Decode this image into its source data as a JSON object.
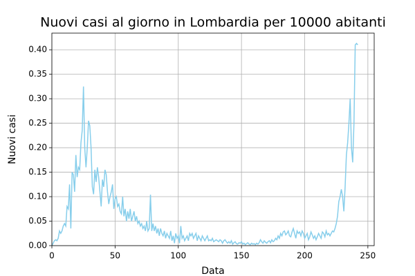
{
  "chart_data": {
    "type": "line",
    "title": "Nuovi casi al giorno in Lombardia per 10000 abitanti",
    "xlabel": "Data",
    "ylabel": "Nuovi casi",
    "xlim": [
      0,
      255
    ],
    "ylim": [
      0,
      0.434
    ],
    "xticks": [
      0,
      50,
      100,
      150,
      200,
      250
    ],
    "yticks": [
      {
        "value": 0,
        "label": "0.00"
      },
      {
        "value": 0.05,
        "label": "0.05"
      },
      {
        "value": 0.1,
        "label": "0.10"
      },
      {
        "value": 0.15,
        "label": "0.15"
      },
      {
        "value": 0.2,
        "label": "0.20"
      },
      {
        "value": 0.25,
        "label": "0.25"
      },
      {
        "value": 0.3,
        "label": "0.30"
      },
      {
        "value": 0.35,
        "label": "0.35"
      },
      {
        "value": 0.4,
        "label": "0.40"
      }
    ],
    "grid": true,
    "x": [
      0,
      1,
      2,
      3,
      4,
      5,
      6,
      7,
      8,
      9,
      10,
      11,
      12,
      13,
      14,
      15,
      16,
      17,
      18,
      19,
      20,
      21,
      22,
      23,
      24,
      25,
      26,
      27,
      28,
      29,
      30,
      31,
      32,
      33,
      34,
      35,
      36,
      37,
      38,
      39,
      40,
      41,
      42,
      43,
      44,
      45,
      46,
      47,
      48,
      49,
      50,
      51,
      52,
      53,
      54,
      55,
      56,
      57,
      58,
      59,
      60,
      61,
      62,
      63,
      64,
      65,
      66,
      67,
      68,
      69,
      70,
      71,
      72,
      73,
      74,
      75,
      76,
      77,
      78,
      79,
      80,
      81,
      82,
      83,
      84,
      85,
      86,
      87,
      88,
      89,
      90,
      91,
      92,
      93,
      94,
      95,
      96,
      97,
      98,
      99,
      100,
      101,
      102,
      103,
      104,
      105,
      106,
      107,
      108,
      109,
      110,
      111,
      112,
      113,
      114,
      115,
      116,
      117,
      118,
      119,
      120,
      121,
      122,
      123,
      124,
      125,
      126,
      127,
      128,
      129,
      130,
      131,
      132,
      133,
      134,
      135,
      136,
      137,
      138,
      139,
      140,
      141,
      142,
      143,
      144,
      145,
      146,
      147,
      148,
      149,
      150,
      151,
      152,
      153,
      154,
      155,
      156,
      157,
      158,
      159,
      160,
      161,
      162,
      163,
      164,
      165,
      166,
      167,
      168,
      169,
      170,
      171,
      172,
      173,
      174,
      175,
      176,
      177,
      178,
      179,
      180,
      181,
      182,
      183,
      184,
      185,
      186,
      187,
      188,
      189,
      190,
      191,
      192,
      193,
      194,
      195,
      196,
      197,
      198,
      199,
      200,
      201,
      202,
      203,
      204,
      205,
      206,
      207,
      208,
      209,
      210,
      211,
      212,
      213,
      214,
      215,
      216,
      217,
      218,
      219,
      220,
      221,
      222,
      223,
      224,
      225,
      226,
      227,
      228,
      229,
      230,
      231,
      232,
      233,
      234,
      235,
      236,
      237,
      238,
      239,
      240,
      241,
      242
    ],
    "series": [
      {
        "color": "#87ceeb",
        "values": [
          0,
          0.005,
          0.01,
          0.012,
          0.01,
          0.015,
          0.03,
          0.025,
          0.03,
          0.04,
          0.045,
          0.04,
          0.08,
          0.075,
          0.125,
          0.035,
          0.15,
          0.145,
          0.11,
          0.185,
          0.14,
          0.16,
          0.155,
          0.21,
          0.235,
          0.325,
          0.2,
          0.16,
          0.2,
          0.255,
          0.245,
          0.2,
          0.12,
          0.105,
          0.155,
          0.13,
          0.16,
          0.14,
          0.11,
          0.08,
          0.135,
          0.12,
          0.155,
          0.145,
          0.11,
          0.085,
          0.1,
          0.11,
          0.125,
          0.075,
          0.095,
          0.1,
          0.08,
          0.085,
          0.07,
          0.065,
          0.1,
          0.06,
          0.075,
          0.05,
          0.07,
          0.055,
          0.075,
          0.05,
          0.06,
          0.07,
          0.05,
          0.06,
          0.045,
          0.05,
          0.04,
          0.045,
          0.035,
          0.04,
          0.03,
          0.05,
          0.03,
          0.035,
          0.104,
          0.03,
          0.045,
          0.03,
          0.04,
          0.025,
          0.035,
          0.02,
          0.035,
          0.025,
          0.02,
          0.03,
          0.015,
          0.025,
          0.02,
          0.015,
          0.03,
          0.01,
          0.02,
          0.005,
          0.025,
          0.015,
          0.02,
          0.005,
          0.04,
          0.015,
          0.02,
          0.01,
          0.015,
          0.02,
          0.01,
          0.025,
          0.02,
          0.025,
          0.015,
          0.02,
          0.025,
          0.01,
          0.02,
          0.015,
          0.01,
          0.02,
          0.015,
          0.01,
          0.015,
          0.02,
          0.01,
          0.012,
          0.01,
          0.015,
          0.008,
          0.01,
          0.012,
          0.01,
          0.008,
          0.012,
          0.01,
          0.005,
          0.01,
          0.012,
          0.008,
          0.005,
          0.008,
          0.005,
          0.01,
          0.003,
          0.006,
          0.008,
          0.004,
          0.003,
          0.006,
          0.005,
          0.008,
          0.003,
          0.005,
          0.002,
          0.004,
          0.006,
          0.003,
          0.002,
          0.005,
          0.003,
          0.004,
          0.002,
          0.005,
          0.003,
          0.006,
          0.012,
          0.008,
          0.005,
          0.01,
          0.007,
          0.005,
          0.008,
          0.01,
          0.006,
          0.012,
          0.008,
          0.01,
          0.015,
          0.012,
          0.02,
          0.015,
          0.025,
          0.02,
          0.028,
          0.03,
          0.022,
          0.025,
          0.03,
          0.02,
          0.018,
          0.028,
          0.035,
          0.025,
          0.015,
          0.03,
          0.025,
          0.028,
          0.02,
          0.03,
          0.025,
          0.015,
          0.02,
          0.025,
          0.012,
          0.018,
          0.028,
          0.022,
          0.015,
          0.02,
          0.012,
          0.018,
          0.025,
          0.02,
          0.015,
          0.028,
          0.025,
          0.018,
          0.03,
          0.022,
          0.025,
          0.02,
          0.025,
          0.03,
          0.028,
          0.035,
          0.045,
          0.06,
          0.09,
          0.1,
          0.115,
          0.1,
          0.07,
          0.12,
          0.185,
          0.21,
          0.25,
          0.3,
          0.2,
          0.17,
          0.25,
          0.41,
          0.413,
          0.41
        ]
      }
    ]
  }
}
